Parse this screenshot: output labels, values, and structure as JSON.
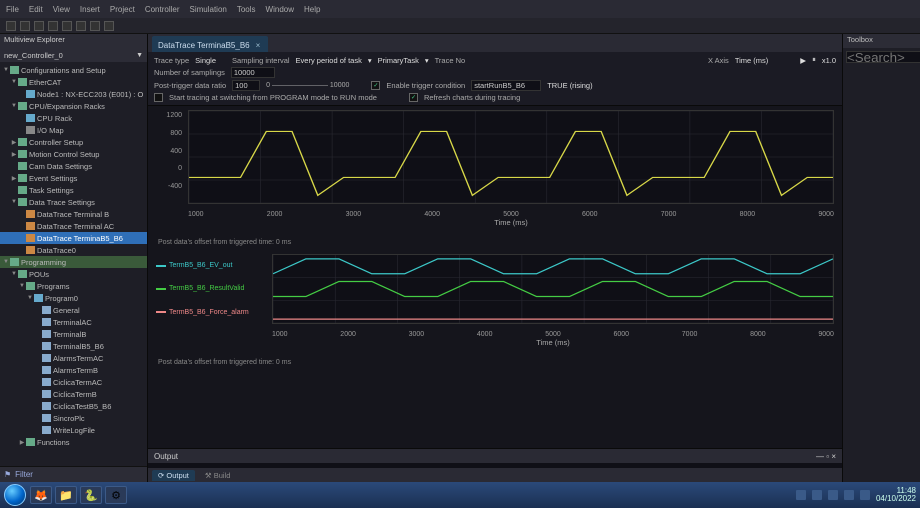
{
  "menu": {
    "items": [
      "File",
      "Edit",
      "View",
      "Insert",
      "Project",
      "Controller",
      "Simulation",
      "Tools",
      "Window",
      "Help"
    ]
  },
  "explorer": {
    "title": "Multiview Explorer",
    "project": "new_Controller_0",
    "filter_label": "Filter",
    "tree": [
      {
        "d": 0,
        "t": "▼",
        "ic": "#6a8",
        "l": "Configurations and Setup"
      },
      {
        "d": 1,
        "t": "▼",
        "ic": "#6a8",
        "l": "EtherCAT"
      },
      {
        "d": 2,
        "t": "",
        "ic": "#6ac",
        "l": "Node1 : NX-ECC203 (E001) : O"
      },
      {
        "d": 1,
        "t": "▼",
        "ic": "#6a8",
        "l": "CPU/Expansion Racks"
      },
      {
        "d": 2,
        "t": "",
        "ic": "#6ac",
        "l": "CPU Rack"
      },
      {
        "d": 2,
        "t": "",
        "ic": "#888",
        "l": "I/O Map"
      },
      {
        "d": 1,
        "t": "▶",
        "ic": "#6a8",
        "l": "Controller Setup"
      },
      {
        "d": 1,
        "t": "▶",
        "ic": "#6a8",
        "l": "Motion Control Setup"
      },
      {
        "d": 1,
        "t": "",
        "ic": "#6a8",
        "l": "Cam Data Settings"
      },
      {
        "d": 1,
        "t": "▶",
        "ic": "#6a8",
        "l": "Event Settings"
      },
      {
        "d": 1,
        "t": "",
        "ic": "#6a8",
        "l": "Task Settings"
      },
      {
        "d": 1,
        "t": "▼",
        "ic": "#6a8",
        "l": "Data Trace Settings"
      },
      {
        "d": 2,
        "t": "",
        "ic": "#c84",
        "l": "DataTrace Terminal B",
        "sel": false
      },
      {
        "d": 2,
        "t": "",
        "ic": "#c84",
        "l": "DataTrace Terminal AC"
      },
      {
        "d": 2,
        "t": "",
        "ic": "#c84",
        "l": "DataTrace TerminaB5_B6",
        "sel": true
      },
      {
        "d": 2,
        "t": "",
        "ic": "#c84",
        "l": "DataTrace0"
      },
      {
        "d": 0,
        "t": "▼",
        "ic": "#6a8",
        "l": "Programming",
        "hl": true
      },
      {
        "d": 1,
        "t": "▼",
        "ic": "#6a8",
        "l": "POUs"
      },
      {
        "d": 2,
        "t": "▼",
        "ic": "#6a8",
        "l": "Programs"
      },
      {
        "d": 3,
        "t": "▼",
        "ic": "#6ac",
        "l": "Program0"
      },
      {
        "d": 4,
        "t": "",
        "ic": "#8ac",
        "l": "General"
      },
      {
        "d": 4,
        "t": "",
        "ic": "#8ac",
        "l": "TerminalAC"
      },
      {
        "d": 4,
        "t": "",
        "ic": "#8ac",
        "l": "TerminalB"
      },
      {
        "d": 4,
        "t": "",
        "ic": "#8ac",
        "l": "TerminalB5_B6"
      },
      {
        "d": 4,
        "t": "",
        "ic": "#8ac",
        "l": "AlarmsTermAC"
      },
      {
        "d": 4,
        "t": "",
        "ic": "#8ac",
        "l": "AlarmsTermB"
      },
      {
        "d": 4,
        "t": "",
        "ic": "#8ac",
        "l": "CiclicaTermAC"
      },
      {
        "d": 4,
        "t": "",
        "ic": "#8ac",
        "l": "CiclicaTermB"
      },
      {
        "d": 4,
        "t": "",
        "ic": "#8ac",
        "l": "CiclicaTestB5_B6"
      },
      {
        "d": 4,
        "t": "",
        "ic": "#8ac",
        "l": "SincroPlc"
      },
      {
        "d": 4,
        "t": "",
        "ic": "#8ac",
        "l": "WriteLogFile"
      },
      {
        "d": 2,
        "t": "▶",
        "ic": "#6a8",
        "l": "Functions"
      }
    ]
  },
  "tab": {
    "label": "DataTrace TerminaB5_B6",
    "close": "×"
  },
  "config": {
    "trace_type_label": "Trace type",
    "trace_type_value": "Single",
    "sampling_interval_label": "Sampling interval",
    "sampling_interval_value": "Every period of task",
    "primary_task_label": "PrimaryTask",
    "trace_no_label": "Trace No",
    "xaxis_label": "X Axis",
    "xaxis_value": "Time (ms)",
    "zoom": "x1.0",
    "num_samplings_label": "Number of samplings",
    "num_samplings_value": "10000",
    "post_trigger_label": "Post-trigger data ratio",
    "post_trigger_value": "100",
    "post_trigger_range": "0 ———————— 10000",
    "enable_trigger_label": "Enable trigger condition",
    "trigger_var": "startRunB5_B6",
    "trigger_cmp": "TRUE (rising)",
    "start_tracing_label": "Start tracing at switching from PROGRAM mode to RUN mode",
    "refresh_label": "Refresh charts during tracing"
  },
  "chart1": {
    "bg": "#0f0f16",
    "grid": "#2a2a33",
    "line_color": "#d8d848",
    "yticks": [
      "1200",
      "800",
      "400",
      "0",
      "-400"
    ],
    "xticks": [
      "1000",
      "2000",
      "3000",
      "4000",
      "5000",
      "6000",
      "7000",
      "8000",
      "9000"
    ],
    "xlabel": "Time (ms)",
    "post_note": "Post data's offset from triggered time: 0 ms",
    "series_y": [
      0,
      0,
      0,
      900,
      900,
      -350,
      0,
      0,
      0,
      900,
      900,
      -350,
      0,
      0,
      0,
      900,
      900,
      -350,
      0,
      0,
      0,
      900,
      900,
      -350,
      0,
      0
    ],
    "ymin": -500,
    "ymax": 1300
  },
  "chart2": {
    "bg": "#0f0f16",
    "grid": "#2a2a33",
    "xticks": [
      "1000",
      "2000",
      "3000",
      "4000",
      "5000",
      "6000",
      "7000",
      "8000",
      "9000"
    ],
    "xlabel": "Time (ms)",
    "post_note": "Post data's offset from triggered time: 0 ms",
    "legends": [
      {
        "label": "TermB5_B6_EV_out",
        "color": "#3cc8c8"
      },
      {
        "label": "TermB5_B6_ResultValid",
        "color": "#4c4"
      },
      {
        "label": "TermB5_B6_Force_alarm",
        "color": "#e88"
      }
    ],
    "rows": [
      {
        "color": "#3cc8c8",
        "pattern": [
          0,
          1,
          1,
          0,
          0,
          1,
          1,
          0,
          0,
          1,
          1,
          0,
          0,
          1,
          1,
          0,
          0,
          1
        ]
      },
      {
        "color": "#4c4",
        "pattern": [
          0,
          0,
          1,
          1,
          0,
          0,
          1,
          1,
          0,
          0,
          1,
          1,
          0,
          0,
          1,
          1,
          0,
          0
        ]
      },
      {
        "color": "#e88",
        "pattern": [
          0,
          0,
          0,
          0,
          0,
          0,
          0,
          0,
          0,
          0,
          0,
          0,
          0,
          0,
          0,
          0,
          0,
          0
        ]
      }
    ]
  },
  "output": {
    "title": "Output",
    "tabs": [
      "Output",
      "Build"
    ]
  },
  "toolbox": {
    "title": "Toolbox",
    "search_ph": "<Search>"
  },
  "taskbar": {
    "time": "11:48",
    "date": "04/10/2022",
    "apps": [
      "🦊",
      "📁",
      "🐍",
      "⚙"
    ]
  }
}
